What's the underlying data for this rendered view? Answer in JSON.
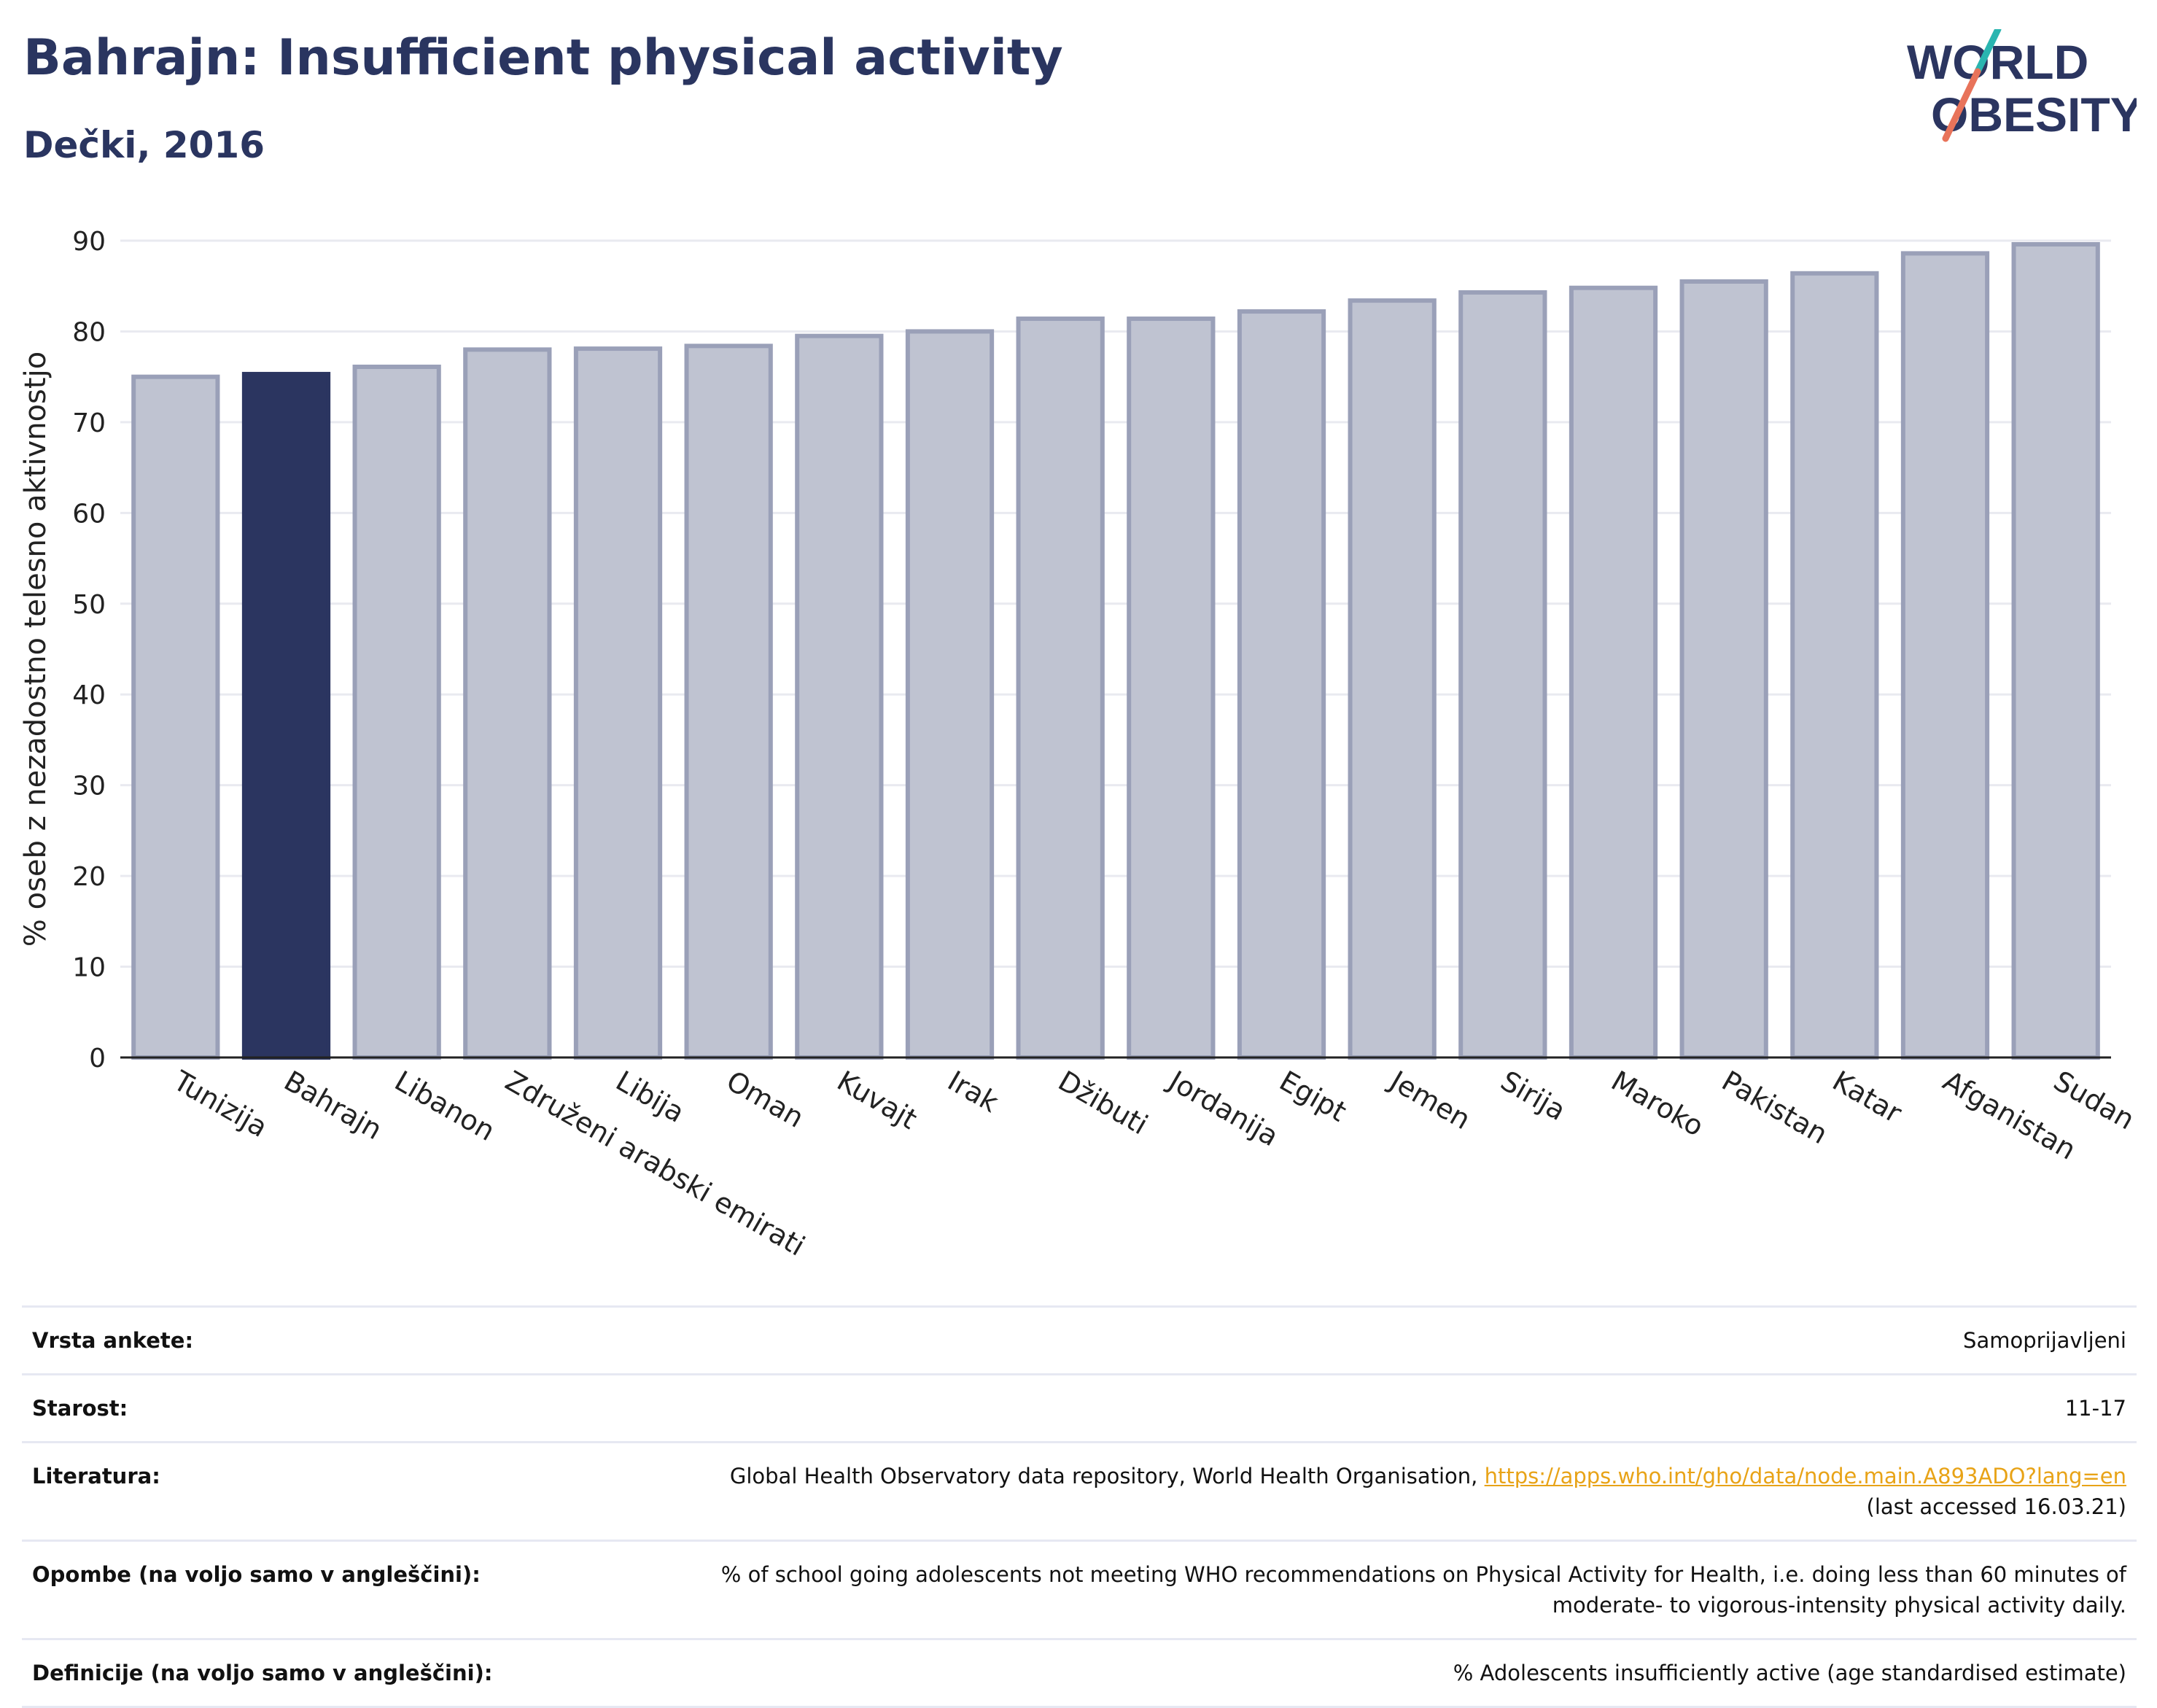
{
  "header": {
    "title": "Bahrajn: Insufficient physical activity",
    "subtitle": "Dečki, 2016"
  },
  "logo": {
    "line1": "WORLD",
    "line2": "OBESITY",
    "name": "world-obesity-logo"
  },
  "colors": {
    "highlight": "#2b3560",
    "bar_fill": "#bfc3d1",
    "bar_border": "#9aa0b8",
    "grid": "#e9eaf0",
    "link": "#e8a317",
    "logo_teal": "#2ab5b0",
    "logo_coral": "#e8735a"
  },
  "chart_data": {
    "type": "bar",
    "ylabel": "% oseb z nezadostno telesno aktivnostjo",
    "ylim": [
      0,
      90
    ],
    "yticks": [
      0,
      10,
      20,
      30,
      40,
      50,
      60,
      70,
      80,
      90
    ],
    "grid": true,
    "highlight": "Bahrajn",
    "categories": [
      "Tunizija",
      "Bahrajn",
      "Libanon",
      "Združeni arabski emirati",
      "Libija",
      "Oman",
      "Kuvajt",
      "Irak",
      "Džibuti",
      "Jordanija",
      "Egipt",
      "Jemen",
      "Sirija",
      "Maroko",
      "Pakistan",
      "Katar",
      "Afganistan",
      "Sudan"
    ],
    "values": [
      75.0,
      75.3,
      76.1,
      78.0,
      78.1,
      78.4,
      79.5,
      80.0,
      81.4,
      81.4,
      82.2,
      83.4,
      84.3,
      84.8,
      85.5,
      86.4,
      88.6,
      89.6
    ]
  },
  "meta": [
    {
      "key": "Vrsta ankete:",
      "value": "Samoprijavljeni"
    },
    {
      "key": "Starost:",
      "value": "11-17"
    },
    {
      "key": "Literatura:",
      "value": "Global Health Observatory data repository, World Health Organisation, ",
      "link": "https://apps.who.int/gho/data/node.main.A893ADO?lang=en",
      "tail": "(last accessed 16.03.21)"
    },
    {
      "key": "Opombe (na voljo samo v angleščini):",
      "value": "% of school going adolescents not meeting WHO recommendations on Physical Activity for Health, i.e. doing less than 60 minutes of moderate- to vigorous-intensity physical activity daily."
    },
    {
      "key": "Definicije (na voljo samo v angleščini):",
      "value": "% Adolescents insufficiently active (age standardised estimate)"
    }
  ]
}
